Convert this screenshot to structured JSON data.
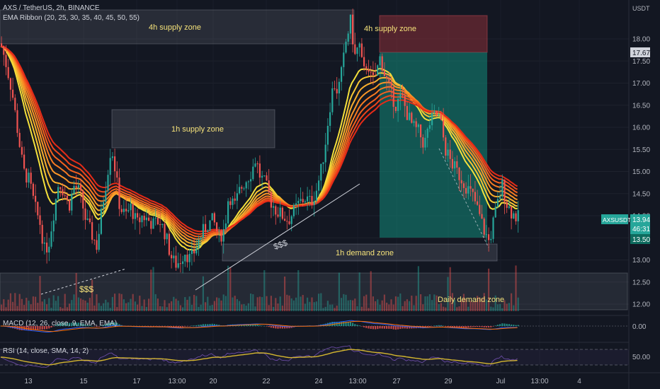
{
  "header": {
    "symbol_line": "AXS / TetherUS, 2h, BINANCE",
    "ema_ribbon": "EMA Ribbon (20, 25, 30, 35, 40, 45, 50, 55)",
    "currency": "USDT"
  },
  "price_badges": {
    "price_a": "17.67",
    "symbol": "AXSUSDT",
    "last": "13.94",
    "countdown": "46:31",
    "level": "13.50"
  },
  "macd": {
    "label": "MACD (12, 26, close, 9, EMA, EMA)",
    "value_label": "0.00"
  },
  "rsi": {
    "label": "RSI (14, close, SMA, 14, 2)",
    "value_label": "50.00"
  },
  "annotations": {
    "supply_4h_left": "4h supply zone",
    "supply_4h_right": "4h supply zone",
    "supply_1h": "1h supply zone",
    "demand_1h": "1h demand zone",
    "demand_daily": "Daily demand zone",
    "liq_left": "$$$",
    "liq_mid": "$$$"
  },
  "colors": {
    "background": "#131722",
    "up": "#26a69a",
    "down": "#ef5350",
    "rsi": "#d4b62f",
    "position_profit": "#0e6b5e",
    "position_stop": "#6b2a30"
  },
  "chart_data": {
    "type": "candlestick",
    "title": "AXS / TetherUS, 2h, BINANCE",
    "y_axis": {
      "ticks": [
        "18.00",
        "17.50",
        "17.00",
        "16.50",
        "16.00",
        "15.50",
        "15.00",
        "14.50",
        "14.00",
        "13.50",
        "13.00",
        "12.50",
        "12.00"
      ],
      "range": [
        11.8,
        18.5
      ]
    },
    "x_axis": {
      "ticks": [
        "13",
        "15",
        "17",
        "13:00",
        "20",
        "22",
        "24",
        "13:00",
        "27",
        "29",
        "Jul",
        "13:00",
        "4"
      ]
    },
    "close_path": [
      {
        "x": 0,
        "y": 17.9
      },
      {
        "x": 8,
        "y": 17.4
      },
      {
        "x": 16,
        "y": 16.8
      },
      {
        "x": 24,
        "y": 15.9
      },
      {
        "x": 32,
        "y": 15.0
      },
      {
        "x": 40,
        "y": 14.8
      },
      {
        "x": 48,
        "y": 14.2
      },
      {
        "x": 56,
        "y": 13.8
      },
      {
        "x": 62,
        "y": 13.2
      },
      {
        "x": 68,
        "y": 13.4
      },
      {
        "x": 74,
        "y": 14.0
      },
      {
        "x": 82,
        "y": 14.8
      },
      {
        "x": 90,
        "y": 14.5
      },
      {
        "x": 96,
        "y": 14.2
      },
      {
        "x": 104,
        "y": 14.7
      },
      {
        "x": 112,
        "y": 14.5
      },
      {
        "x": 120,
        "y": 13.9
      },
      {
        "x": 128,
        "y": 13.6
      },
      {
        "x": 136,
        "y": 13.3
      },
      {
        "x": 144,
        "y": 14.3
      },
      {
        "x": 150,
        "y": 14.9
      },
      {
        "x": 156,
        "y": 15.6
      },
      {
        "x": 162,
        "y": 15.0
      },
      {
        "x": 168,
        "y": 14.2
      },
      {
        "x": 176,
        "y": 14.0
      },
      {
        "x": 184,
        "y": 14.2
      },
      {
        "x": 192,
        "y": 13.8
      },
      {
        "x": 200,
        "y": 14.0
      },
      {
        "x": 208,
        "y": 13.9
      },
      {
        "x": 216,
        "y": 13.8
      },
      {
        "x": 224,
        "y": 13.9
      },
      {
        "x": 232,
        "y": 13.6
      },
      {
        "x": 240,
        "y": 13.1
      },
      {
        "x": 246,
        "y": 12.9
      },
      {
        "x": 252,
        "y": 12.95
      },
      {
        "x": 260,
        "y": 13.2
      },
      {
        "x": 268,
        "y": 13.0
      },
      {
        "x": 276,
        "y": 13.3
      },
      {
        "x": 284,
        "y": 13.6
      },
      {
        "x": 292,
        "y": 13.8
      },
      {
        "x": 300,
        "y": 13.9
      },
      {
        "x": 308,
        "y": 13.5
      },
      {
        "x": 316,
        "y": 13.7
      },
      {
        "x": 322,
        "y": 14.5
      },
      {
        "x": 330,
        "y": 14.2
      },
      {
        "x": 338,
        "y": 14.6
      },
      {
        "x": 346,
        "y": 14.8
      },
      {
        "x": 354,
        "y": 15.0
      },
      {
        "x": 360,
        "y": 15.3
      },
      {
        "x": 366,
        "y": 14.9
      },
      {
        "x": 374,
        "y": 14.7
      },
      {
        "x": 382,
        "y": 14.3
      },
      {
        "x": 390,
        "y": 14.1
      },
      {
        "x": 398,
        "y": 14.0
      },
      {
        "x": 406,
        "y": 13.9
      },
      {
        "x": 414,
        "y": 14.1
      },
      {
        "x": 422,
        "y": 14.3
      },
      {
        "x": 430,
        "y": 14.4
      },
      {
        "x": 438,
        "y": 14.3
      },
      {
        "x": 446,
        "y": 14.6
      },
      {
        "x": 452,
        "y": 15.0
      },
      {
        "x": 458,
        "y": 15.6
      },
      {
        "x": 464,
        "y": 16.4
      },
      {
        "x": 470,
        "y": 17.0
      },
      {
        "x": 476,
        "y": 16.8
      },
      {
        "x": 482,
        "y": 17.3
      },
      {
        "x": 488,
        "y": 18.0
      },
      {
        "x": 494,
        "y": 18.4
      },
      {
        "x": 500,
        "y": 17.6
      },
      {
        "x": 506,
        "y": 17.9
      },
      {
        "x": 512,
        "y": 17.2
      },
      {
        "x": 518,
        "y": 17.5
      },
      {
        "x": 524,
        "y": 17.0
      },
      {
        "x": 530,
        "y": 17.2
      },
      {
        "x": 536,
        "y": 17.6
      },
      {
        "x": 542,
        "y": 17.2
      },
      {
        "x": 550,
        "y": 16.8
      },
      {
        "x": 558,
        "y": 16.5
      },
      {
        "x": 566,
        "y": 16.7
      },
      {
        "x": 574,
        "y": 16.3
      },
      {
        "x": 582,
        "y": 16.0
      },
      {
        "x": 590,
        "y": 15.9
      },
      {
        "x": 598,
        "y": 15.6
      },
      {
        "x": 606,
        "y": 16.1
      },
      {
        "x": 614,
        "y": 16.3
      },
      {
        "x": 620,
        "y": 16.2
      },
      {
        "x": 628,
        "y": 15.5
      },
      {
        "x": 636,
        "y": 15.2
      },
      {
        "x": 644,
        "y": 15.0
      },
      {
        "x": 652,
        "y": 14.8
      },
      {
        "x": 660,
        "y": 14.6
      },
      {
        "x": 668,
        "y": 14.4
      },
      {
        "x": 676,
        "y": 14.0
      },
      {
        "x": 684,
        "y": 13.6
      },
      {
        "x": 690,
        "y": 13.4
      },
      {
        "x": 696,
        "y": 13.9
      },
      {
        "x": 702,
        "y": 14.3
      },
      {
        "x": 708,
        "y": 14.7
      },
      {
        "x": 714,
        "y": 14.3
      },
      {
        "x": 720,
        "y": 14.1
      },
      {
        "x": 726,
        "y": 14.0
      },
      {
        "x": 732,
        "y": 13.94
      }
    ]
  }
}
